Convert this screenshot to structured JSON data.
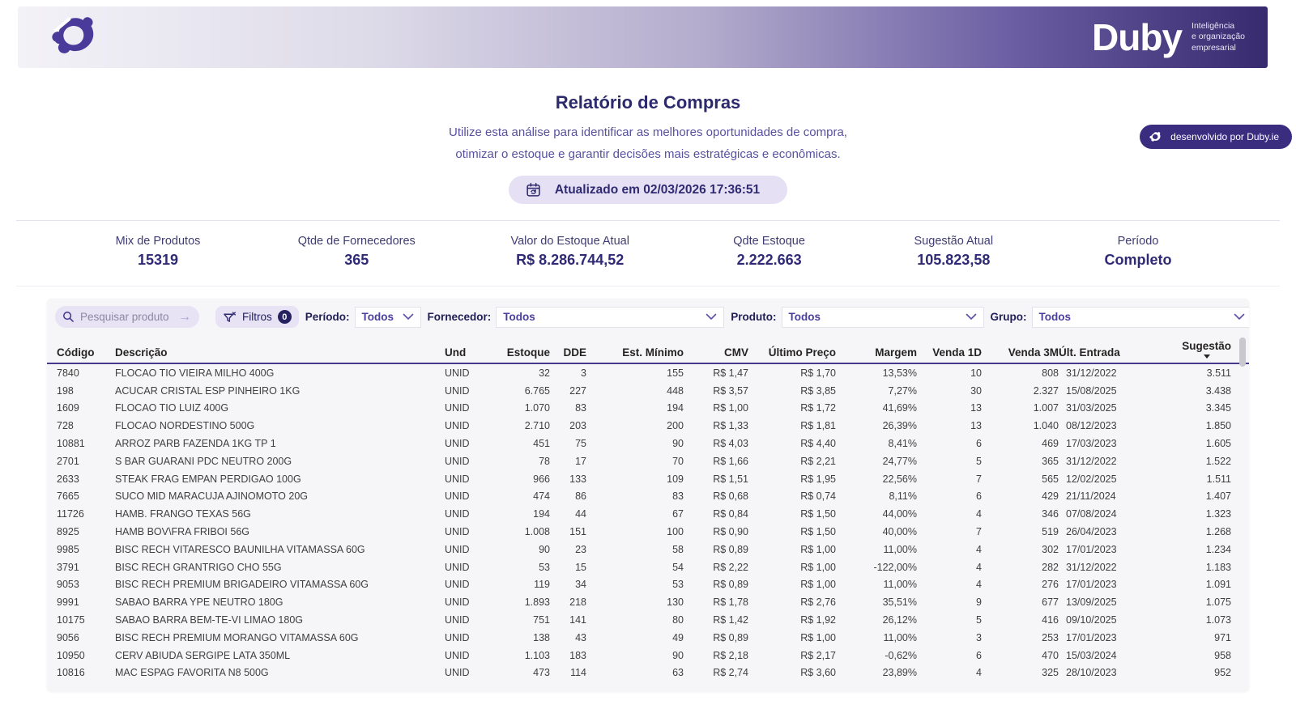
{
  "brand": {
    "wordmark": "Duby",
    "tagline_line1": "Inteligência",
    "tagline_line2": "e organização",
    "tagline_line3": "empresarial",
    "developed_by": "desenvolvido por Duby.ie"
  },
  "header": {
    "title": "Relatório de Compras",
    "subtitle_line1": "Utilize esta análise para identificar as melhores oportunidades de compra,",
    "subtitle_line2": "otimizar o estoque e garantir decisões mais estratégicas e econômicas.",
    "updated_badge": "Atualizado em 02/03/2026 17:36:51"
  },
  "kpis": [
    {
      "label": "Mix de Produtos",
      "value": "15319"
    },
    {
      "label": "Qtde de Fornecedores",
      "value": "365"
    },
    {
      "label": "Valor do Estoque Atual",
      "value": "R$ 8.286.744,52"
    },
    {
      "label": "Qdte Estoque",
      "value": "2.222.663"
    },
    {
      "label": "Sugestão Atual",
      "value": "105.823,58"
    },
    {
      "label": "Período",
      "value": "Completo"
    }
  ],
  "filters": {
    "search_placeholder": "Pesquisar produto",
    "filters_button_label": "Filtros",
    "filters_count": "0",
    "dropdowns": [
      {
        "label": "Período:",
        "value": "Todos"
      },
      {
        "label": "Fornecedor:",
        "value": "Todos"
      },
      {
        "label": "Produto:",
        "value": "Todos"
      },
      {
        "label": "Grupo:",
        "value": "Todos"
      }
    ]
  },
  "table": {
    "columns": [
      "Código",
      "Descrição",
      "Und",
      "Estoque",
      "DDE",
      "Est. Mínimo",
      "CMV",
      "Último Preço",
      "Margem",
      "Venda 1D",
      "Venda 3M",
      "Últ. Entrada",
      "Sugestão"
    ],
    "sorted_column_index": 12,
    "sort_direction": "desc",
    "rows": [
      [
        "7840",
        "FLOCAO TIO VIEIRA MILHO 400G",
        "UNID",
        "32",
        "3",
        "155",
        "R$ 1,47",
        "R$ 1,70",
        "13,53%",
        "10",
        "808",
        "31/12/2022",
        "3.511"
      ],
      [
        "198",
        "ACUCAR CRISTAL ESP PINHEIRO 1KG",
        "UNID",
        "6.765",
        "227",
        "448",
        "R$ 3,57",
        "R$ 3,85",
        "7,27%",
        "30",
        "2.327",
        "15/08/2025",
        "3.438"
      ],
      [
        "1609",
        "FLOCAO TIO LUIZ 400G",
        "UNID",
        "1.070",
        "83",
        "194",
        "R$ 1,00",
        "R$ 1,72",
        "41,69%",
        "13",
        "1.007",
        "31/03/2025",
        "3.345"
      ],
      [
        "728",
        "FLOCAO NORDESTINO 500G",
        "UNID",
        "2.710",
        "203",
        "200",
        "R$ 1,33",
        "R$ 1,81",
        "26,39%",
        "13",
        "1.040",
        "08/12/2023",
        "1.850"
      ],
      [
        "10881",
        "ARROZ PARB FAZENDA 1KG TP 1",
        "UNID",
        "451",
        "75",
        "90",
        "R$ 4,03",
        "R$ 4,40",
        "8,41%",
        "6",
        "469",
        "17/03/2023",
        "1.605"
      ],
      [
        "2701",
        "S BAR GUARANI PDC NEUTRO 200G",
        "UNID",
        "78",
        "17",
        "70",
        "R$ 1,66",
        "R$ 2,21",
        "24,77%",
        "5",
        "365",
        "31/12/2022",
        "1.522"
      ],
      [
        "2633",
        "STEAK FRAG EMPAN PERDIGAO 100G",
        "UNID",
        "966",
        "133",
        "109",
        "R$ 1,51",
        "R$ 1,95",
        "22,56%",
        "7",
        "565",
        "12/02/2025",
        "1.511"
      ],
      [
        "7665",
        "SUCO MID MARACUJA AJINOMOTO 20G",
        "UNID",
        "474",
        "86",
        "83",
        "R$ 0,68",
        "R$ 0,74",
        "8,11%",
        "6",
        "429",
        "21/11/2024",
        "1.407"
      ],
      [
        "11726",
        "HAMB. FRANGO TEXAS 56G",
        "UNID",
        "194",
        "44",
        "67",
        "R$ 0,84",
        "R$ 1,50",
        "44,00%",
        "4",
        "346",
        "07/08/2024",
        "1.323"
      ],
      [
        "8925",
        "HAMB BOV\\FRA FRIBOI 56G",
        "UNID",
        "1.008",
        "151",
        "100",
        "R$ 0,90",
        "R$ 1,50",
        "40,00%",
        "7",
        "519",
        "26/04/2023",
        "1.268"
      ],
      [
        "9985",
        "BISC RECH VITARESCO BAUNILHA VITAMASSA 60G",
        "UNID",
        "90",
        "23",
        "58",
        "R$ 0,89",
        "R$ 1,00",
        "11,00%",
        "4",
        "302",
        "17/01/2023",
        "1.234"
      ],
      [
        "3791",
        "BISC RECH GRANTRIGO CHO 55G",
        "UNID",
        "53",
        "15",
        "54",
        "R$ 2,22",
        "R$ 1,00",
        "-122,00%",
        "4",
        "282",
        "31/12/2022",
        "1.183"
      ],
      [
        "9053",
        "BISC RECH PREMIUM BRIGADEIRO VITAMASSA 60G",
        "UNID",
        "119",
        "34",
        "53",
        "R$ 0,89",
        "R$ 1,00",
        "11,00%",
        "4",
        "276",
        "17/01/2023",
        "1.091"
      ],
      [
        "9991",
        "SABAO BARRA YPE NEUTRO 180G",
        "UNID",
        "1.893",
        "218",
        "130",
        "R$ 1,78",
        "R$ 2,76",
        "35,51%",
        "9",
        "677",
        "13/09/2025",
        "1.075"
      ],
      [
        "10175",
        "SABAO BARRA BEM-TE-VI LIMAO 180G",
        "UNID",
        "751",
        "141",
        "80",
        "R$ 1,42",
        "R$ 1,92",
        "26,12%",
        "5",
        "416",
        "09/10/2025",
        "1.073"
      ],
      [
        "9056",
        "BISC RECH PREMIUM MORANGO VITAMASSA 60G",
        "UNID",
        "138",
        "43",
        "49",
        "R$ 0,89",
        "R$ 1,00",
        "11,00%",
        "3",
        "253",
        "17/01/2023",
        "971"
      ],
      [
        "10950",
        "CERV ABIUDA SERGIPE LATA 350ML",
        "UNID",
        "1.103",
        "183",
        "90",
        "R$ 2,18",
        "R$ 2,17",
        "-0,62%",
        "6",
        "470",
        "15/03/2024",
        "958"
      ],
      [
        "10816",
        "MAC ESPAG FAVORITA N8 500G",
        "UNID",
        "473",
        "114",
        "63",
        "R$ 2,74",
        "R$ 3,60",
        "23,89%",
        "4",
        "325",
        "28/10/2023",
        "952"
      ]
    ]
  },
  "colors": {
    "accent_purple": "#4a3a99",
    "dark_purple": "#372a6e",
    "badge_background": "#e6e0f4",
    "title_text": "#2c2a6d",
    "card_background": "#f6f5f8",
    "table_header_border": "#463a8c"
  }
}
